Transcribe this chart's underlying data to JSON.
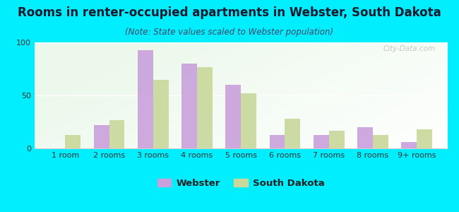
{
  "categories": [
    "1 room",
    "2 rooms",
    "3 rooms",
    "4 rooms",
    "5 rooms",
    "6 rooms",
    "7 rooms",
    "8 rooms",
    "9+ rooms"
  ],
  "webster_values": [
    0,
    22,
    93,
    80,
    60,
    13,
    13,
    20,
    6
  ],
  "sd_values": [
    13,
    27,
    65,
    77,
    52,
    28,
    17,
    13,
    18
  ],
  "webster_color": "#c9a0dc",
  "sd_color": "#c8d89a",
  "title": "Rooms in renter-occupied apartments in Webster, South Dakota",
  "subtitle": "(Note: State values scaled to Webster population)",
  "ylim": [
    0,
    100
  ],
  "yticks": [
    0,
    50,
    100
  ],
  "outer_background": "#00eeff",
  "legend_webster": "Webster",
  "legend_sd": "South Dakota",
  "watermark": "City-Data.com",
  "bar_width": 0.35,
  "title_fontsize": 12,
  "subtitle_fontsize": 8.5,
  "tick_fontsize": 8,
  "legend_fontsize": 9.5
}
